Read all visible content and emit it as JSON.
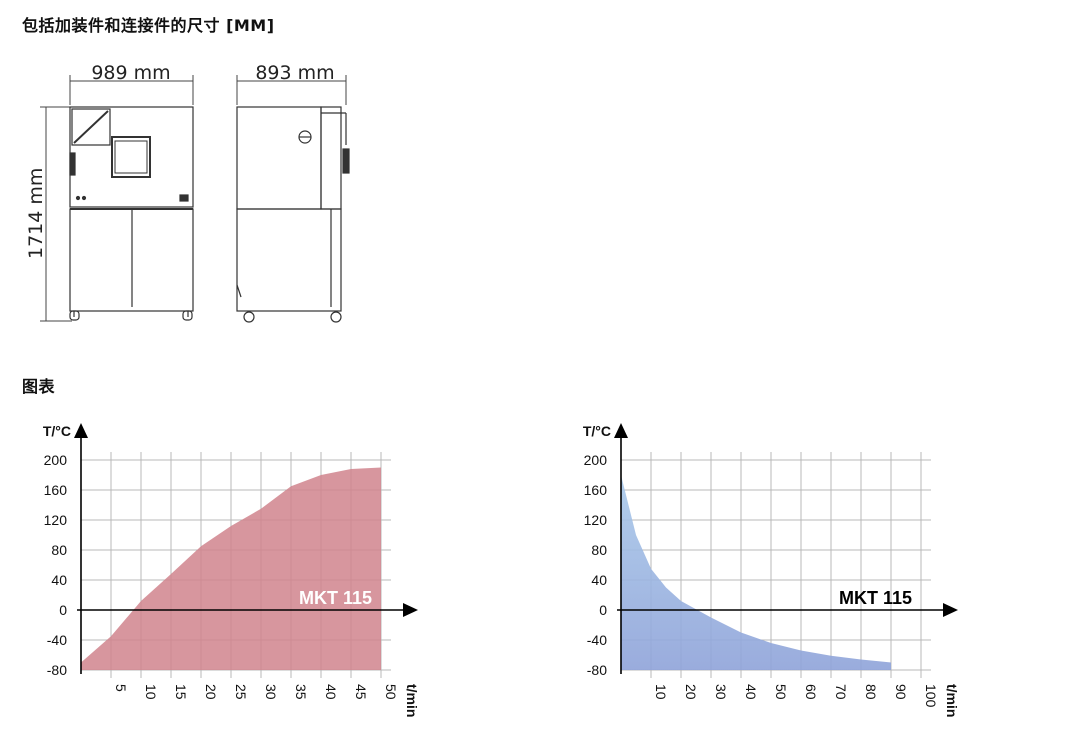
{
  "section_dimensions": {
    "title": "包括加装件和连接件的尺寸 [MM]"
  },
  "dimensions": {
    "width": "989 mm",
    "depth": "893 mm",
    "height": "1714 mm"
  },
  "section_charts": {
    "title": "图表"
  },
  "colors": {
    "heating": "#d0848d",
    "cooling_top": "#a9c9ea",
    "cooling_bottom": "#8fa3d9",
    "grid": "#b8b8b8",
    "axis": "#000000"
  },
  "chart_data": [
    {
      "type": "area",
      "ylabel": "T/°C",
      "xlabel": "t/min",
      "xlim": [
        0,
        50
      ],
      "ylim": [
        -80,
        200
      ],
      "x_ticks": [
        5,
        10,
        15,
        20,
        25,
        30,
        35,
        40,
        45,
        50
      ],
      "y_ticks": [
        200,
        160,
        120,
        80,
        40,
        0,
        -40,
        -80
      ],
      "grid": true,
      "series": [
        {
          "name": "MKT 115",
          "x": [
            0,
            5,
            10,
            15,
            20,
            25,
            30,
            35,
            40,
            45,
            50
          ],
          "y": [
            -70,
            -35,
            12,
            48,
            85,
            112,
            135,
            165,
            180,
            188,
            190
          ]
        }
      ]
    },
    {
      "type": "area",
      "ylabel": "T/°C",
      "xlabel": "t/min",
      "xlim": [
        0,
        100
      ],
      "ylim": [
        -80,
        200
      ],
      "x_ticks": [
        10,
        20,
        30,
        40,
        50,
        60,
        70,
        80,
        90,
        100
      ],
      "y_ticks": [
        200,
        160,
        120,
        80,
        40,
        0,
        -40,
        -80
      ],
      "grid": true,
      "series": [
        {
          "name": "MKT 115",
          "x": [
            0,
            5,
            10,
            15,
            20,
            30,
            40,
            50,
            60,
            70,
            80,
            90
          ],
          "y": [
            180,
            100,
            55,
            30,
            12,
            -10,
            -30,
            -44,
            -54,
            -61,
            -66,
            -70
          ]
        }
      ]
    }
  ]
}
